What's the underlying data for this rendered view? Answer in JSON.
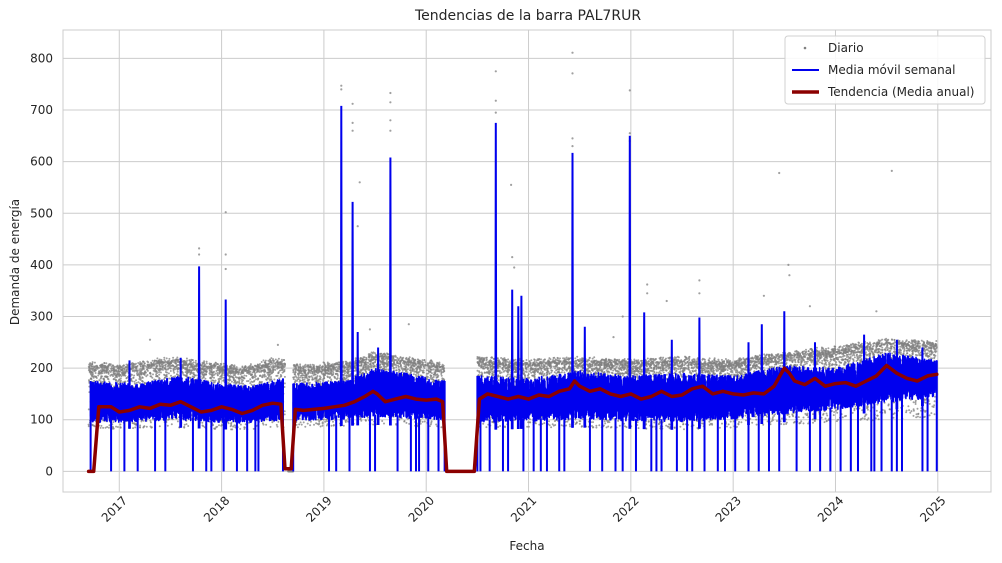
{
  "chart_data": {
    "type": "line",
    "title": "Tendencias de la barra PAL7RUR",
    "xlabel": "Fecha",
    "ylabel": "Demanda de energía",
    "xlim": [
      2016.45,
      2025.52
    ],
    "ylim": [
      -40,
      855
    ],
    "x_ticks": [
      "2017",
      "2018",
      "2019",
      "2020",
      "2021",
      "2022",
      "2023",
      "2024",
      "2025"
    ],
    "y_ticks": [
      0,
      100,
      200,
      300,
      400,
      500,
      600,
      700,
      800
    ],
    "grid": true,
    "legend_position": "top-right",
    "series": [
      {
        "name": "Diario",
        "style": "scatter",
        "color": "#808080",
        "segments": [
          [
            2016.7,
            2018.62
          ],
          [
            2018.7,
            2020.18
          ],
          [
            2020.5,
            2024.99
          ]
        ],
        "band_upper": [
          [
            2016.7,
            205
          ],
          [
            2017.0,
            200
          ],
          [
            2017.5,
            215
          ],
          [
            2017.9,
            205
          ],
          [
            2018.2,
            195
          ],
          [
            2018.55,
            215
          ],
          [
            2018.7,
            200
          ],
          [
            2019.2,
            205
          ],
          [
            2019.5,
            225
          ],
          [
            2019.8,
            215
          ],
          [
            2020.18,
            205
          ],
          [
            2020.5,
            215
          ],
          [
            2021.0,
            210
          ],
          [
            2021.5,
            215
          ],
          [
            2022.0,
            210
          ],
          [
            2022.5,
            215
          ],
          [
            2023.0,
            210
          ],
          [
            2023.5,
            225
          ],
          [
            2024.0,
            235
          ],
          [
            2024.5,
            250
          ],
          [
            2024.99,
            245
          ]
        ],
        "band_lower": [
          [
            2016.7,
            80
          ],
          [
            2017.5,
            85
          ],
          [
            2018.2,
            80
          ],
          [
            2018.62,
            85
          ],
          [
            2018.7,
            85
          ],
          [
            2019.5,
            90
          ],
          [
            2020.18,
            85
          ],
          [
            2020.5,
            85
          ],
          [
            2021.5,
            85
          ],
          [
            2022.5,
            80
          ],
          [
            2023.5,
            90
          ],
          [
            2024.0,
            95
          ],
          [
            2024.99,
            105
          ]
        ],
        "outliers": [
          [
            2017.78,
            432
          ],
          [
            2017.78,
            420
          ],
          [
            2018.04,
            502
          ],
          [
            2018.04,
            420
          ],
          [
            2018.04,
            392
          ],
          [
            2019.17,
            747
          ],
          [
            2019.17,
            740
          ],
          [
            2019.28,
            712
          ],
          [
            2019.28,
            675
          ],
          [
            2019.28,
            660
          ],
          [
            2019.35,
            560
          ],
          [
            2019.33,
            475
          ],
          [
            2019.65,
            733
          ],
          [
            2019.65,
            715
          ],
          [
            2019.65,
            680
          ],
          [
            2019.65,
            660
          ],
          [
            2020.68,
            775
          ],
          [
            2020.68,
            718
          ],
          [
            2020.68,
            695
          ],
          [
            2020.83,
            555
          ],
          [
            2020.84,
            415
          ],
          [
            2020.86,
            395
          ],
          [
            2021.43,
            811
          ],
          [
            2021.43,
            771
          ],
          [
            2021.43,
            645
          ],
          [
            2021.43,
            630
          ],
          [
            2021.99,
            738
          ],
          [
            2021.99,
            655
          ],
          [
            2021.99,
            640
          ],
          [
            2022.16,
            362
          ],
          [
            2022.16,
            345
          ],
          [
            2022.67,
            370
          ],
          [
            2022.67,
            345
          ],
          [
            2023.3,
            340
          ],
          [
            2023.45,
            578
          ],
          [
            2023.54,
            400
          ],
          [
            2023.55,
            380
          ],
          [
            2024.55,
            582
          ],
          [
            2021.92,
            300
          ],
          [
            2021.83,
            260
          ],
          [
            2022.35,
            330
          ],
          [
            2023.75,
            320
          ],
          [
            2024.4,
            310
          ],
          [
            2017.3,
            255
          ],
          [
            2018.55,
            245
          ],
          [
            2019.45,
            275
          ],
          [
            2019.83,
            285
          ]
        ],
        "zeros": [
          [
            2016.7,
            2016.75
          ],
          [
            2018.65,
            2018.7
          ],
          [
            2020.2,
            2020.48
          ]
        ]
      },
      {
        "name": "Media móvil semanal",
        "style": "line",
        "color": "#0000ee",
        "segments": [
          [
            2016.72,
            2018.6
          ],
          [
            2018.7,
            2020.18
          ],
          [
            2020.5,
            2024.99
          ]
        ],
        "band_upper": [
          [
            2016.72,
            175
          ],
          [
            2017.2,
            170
          ],
          [
            2017.6,
            185
          ],
          [
            2018.0,
            170
          ],
          [
            2018.3,
            165
          ],
          [
            2018.6,
            180
          ],
          [
            2018.7,
            170
          ],
          [
            2019.2,
            175
          ],
          [
            2019.5,
            200
          ],
          [
            2019.8,
            190
          ],
          [
            2020.18,
            175
          ],
          [
            2020.5,
            185
          ],
          [
            2021.0,
            180
          ],
          [
            2021.5,
            195
          ],
          [
            2022.0,
            185
          ],
          [
            2022.5,
            190
          ],
          [
            2023.0,
            185
          ],
          [
            2023.5,
            205
          ],
          [
            2024.0,
            200
          ],
          [
            2024.5,
            230
          ],
          [
            2024.99,
            215
          ]
        ],
        "band_lower": [
          [
            2016.72,
            80
          ],
          [
            2017.5,
            85
          ],
          [
            2018.2,
            80
          ],
          [
            2018.6,
            85
          ],
          [
            2018.7,
            85
          ],
          [
            2019.5,
            90
          ],
          [
            2020.18,
            85
          ],
          [
            2020.5,
            80
          ],
          [
            2021.5,
            85
          ],
          [
            2022.5,
            80
          ],
          [
            2023.5,
            95
          ],
          [
            2024.0,
            105
          ],
          [
            2024.99,
            130
          ]
        ],
        "spikes": [
          [
            2017.78,
            397
          ],
          [
            2018.04,
            333
          ],
          [
            2019.17,
            708
          ],
          [
            2019.28,
            522
          ],
          [
            2019.65,
            608
          ],
          [
            2020.68,
            675
          ],
          [
            2020.84,
            352
          ],
          [
            2020.93,
            340
          ],
          [
            2021.43,
            617
          ],
          [
            2021.99,
            650
          ],
          [
            2022.13,
            308
          ],
          [
            2022.67,
            298
          ],
          [
            2023.28,
            285
          ],
          [
            2023.5,
            310
          ],
          [
            2024.28,
            265
          ],
          [
            2020.9,
            320
          ],
          [
            2021.55,
            280
          ],
          [
            2023.15,
            250
          ],
          [
            2022.4,
            255
          ],
          [
            2019.33,
            270
          ],
          [
            2019.53,
            240
          ],
          [
            2017.1,
            215
          ],
          [
            2017.6,
            220
          ],
          [
            2023.8,
            250
          ],
          [
            2024.6,
            255
          ],
          [
            2024.85,
            240
          ]
        ],
        "dips": [
          2016.92,
          2017.05,
          2017.18,
          2017.35,
          2017.45,
          2017.72,
          2017.85,
          2017.9,
          2018.02,
          2018.15,
          2018.25,
          2018.33,
          2018.36,
          2019.05,
          2019.12,
          2019.25,
          2019.45,
          2019.5,
          2019.72,
          2019.85,
          2019.9,
          2019.93,
          2020.02,
          2020.12,
          2020.53,
          2020.62,
          2020.75,
          2020.8,
          2020.95,
          2021.05,
          2021.12,
          2021.18,
          2021.3,
          2021.35,
          2021.6,
          2021.72,
          2021.85,
          2021.92,
          2022.05,
          2022.2,
          2022.25,
          2022.3,
          2022.45,
          2022.55,
          2022.6,
          2022.72,
          2022.85,
          2022.92,
          2023.02,
          2023.15,
          2023.25,
          2023.35,
          2023.45,
          2023.62,
          2023.75,
          2023.85,
          2023.95,
          2024.05,
          2024.15,
          2024.22,
          2024.35,
          2024.38,
          2024.45,
          2024.55,
          2024.6,
          2024.65,
          2024.85,
          2024.9
        ]
      },
      {
        "name": "Tendencia (Media anual)",
        "style": "line",
        "color": "#8b0000",
        "points": [
          [
            2016.7,
            0
          ],
          [
            2016.75,
            0
          ],
          [
            2016.8,
            125
          ],
          [
            2016.92,
            125
          ],
          [
            2017.0,
            115
          ],
          [
            2017.1,
            118
          ],
          [
            2017.2,
            125
          ],
          [
            2017.3,
            122
          ],
          [
            2017.4,
            130
          ],
          [
            2017.5,
            128
          ],
          [
            2017.6,
            135
          ],
          [
            2017.7,
            125
          ],
          [
            2017.8,
            115
          ],
          [
            2017.9,
            118
          ],
          [
            2018.0,
            125
          ],
          [
            2018.1,
            120
          ],
          [
            2018.2,
            112
          ],
          [
            2018.3,
            118
          ],
          [
            2018.4,
            128
          ],
          [
            2018.5,
            132
          ],
          [
            2018.58,
            130
          ],
          [
            2018.62,
            5
          ],
          [
            2018.68,
            5
          ],
          [
            2018.72,
            120
          ],
          [
            2018.8,
            118
          ],
          [
            2018.9,
            120
          ],
          [
            2019.0,
            122
          ],
          [
            2019.1,
            125
          ],
          [
            2019.2,
            128
          ],
          [
            2019.3,
            135
          ],
          [
            2019.4,
            145
          ],
          [
            2019.48,
            155
          ],
          [
            2019.52,
            150
          ],
          [
            2019.6,
            135
          ],
          [
            2019.7,
            140
          ],
          [
            2019.8,
            145
          ],
          [
            2019.9,
            140
          ],
          [
            2020.0,
            138
          ],
          [
            2020.1,
            140
          ],
          [
            2020.16,
            135
          ],
          [
            2020.2,
            0
          ],
          [
            2020.47,
            0
          ],
          [
            2020.52,
            140
          ],
          [
            2020.6,
            150
          ],
          [
            2020.7,
            145
          ],
          [
            2020.8,
            140
          ],
          [
            2020.9,
            145
          ],
          [
            2021.0,
            140
          ],
          [
            2021.1,
            148
          ],
          [
            2021.2,
            145
          ],
          [
            2021.3,
            155
          ],
          [
            2021.4,
            160
          ],
          [
            2021.45,
            175
          ],
          [
            2021.5,
            165
          ],
          [
            2021.6,
            155
          ],
          [
            2021.7,
            160
          ],
          [
            2021.8,
            150
          ],
          [
            2021.9,
            145
          ],
          [
            2022.0,
            150
          ],
          [
            2022.1,
            140
          ],
          [
            2022.2,
            145
          ],
          [
            2022.3,
            155
          ],
          [
            2022.4,
            145
          ],
          [
            2022.5,
            148
          ],
          [
            2022.6,
            160
          ],
          [
            2022.7,
            165
          ],
          [
            2022.8,
            150
          ],
          [
            2022.9,
            155
          ],
          [
            2023.0,
            150
          ],
          [
            2023.1,
            148
          ],
          [
            2023.2,
            152
          ],
          [
            2023.3,
            150
          ],
          [
            2023.4,
            165
          ],
          [
            2023.5,
            200
          ],
          [
            2023.55,
            190
          ],
          [
            2023.6,
            175
          ],
          [
            2023.7,
            168
          ],
          [
            2023.8,
            180
          ],
          [
            2023.9,
            165
          ],
          [
            2024.0,
            170
          ],
          [
            2024.1,
            172
          ],
          [
            2024.2,
            165
          ],
          [
            2024.3,
            175
          ],
          [
            2024.4,
            185
          ],
          [
            2024.5,
            205
          ],
          [
            2024.6,
            190
          ],
          [
            2024.7,
            180
          ],
          [
            2024.8,
            175
          ],
          [
            2024.9,
            185
          ],
          [
            2024.99,
            188
          ]
        ]
      }
    ]
  }
}
